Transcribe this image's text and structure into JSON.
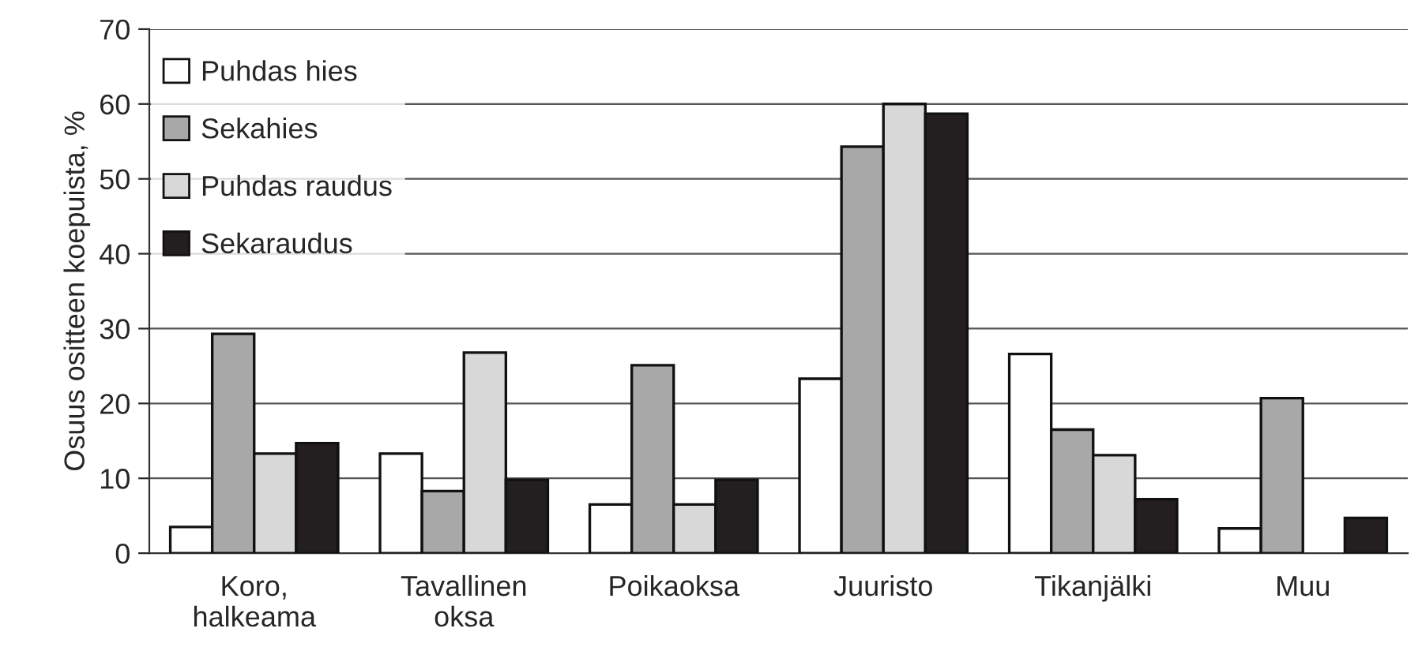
{
  "chart_data": {
    "type": "bar",
    "ylabel": "Osuus ositteen koepuista, %",
    "categories": [
      "Koro,\nhalkeama",
      "Tavallinen\noksa",
      "Poikaoksa",
      "Juuristo",
      "Tikanjälki",
      "Muu"
    ],
    "series": [
      {
        "name": "Puhdas hies",
        "color": "#ffffff",
        "values": [
          3.5,
          13.3,
          6.5,
          23.3,
          26.6,
          3.3
        ]
      },
      {
        "name": "Sekahies",
        "color": "#a8a8a8",
        "values": [
          29.3,
          8.3,
          25.1,
          54.3,
          16.5,
          20.7
        ]
      },
      {
        "name": "Puhdas raudus",
        "color": "#d8d8d8",
        "values": [
          13.3,
          26.8,
          6.5,
          60,
          13.1,
          null
        ]
      },
      {
        "name": "Sekaraudus",
        "color": "#231f20",
        "values": [
          14.7,
          9.8,
          9.8,
          58.7,
          7.2,
          4.7
        ]
      }
    ],
    "ylim": [
      0,
      70
    ],
    "yticks": [
      0,
      10,
      20,
      30,
      40,
      50,
      60,
      70
    ],
    "grid": "y",
    "legend": "top left"
  }
}
